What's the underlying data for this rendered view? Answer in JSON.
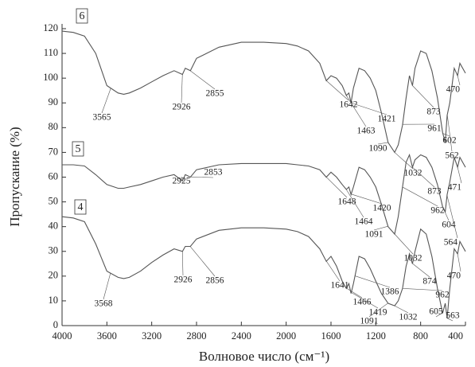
{
  "chart_data": {
    "type": "line",
    "xlabel": "Волновое число (см⁻¹)",
    "ylabel": "Пропускание (%)",
    "xlim": [
      4000,
      400
    ],
    "ylim": [
      0,
      120
    ],
    "xticks": [
      4000,
      3600,
      3200,
      2800,
      2400,
      2000,
      1600,
      1200,
      800,
      400
    ],
    "yticks": [
      0,
      10,
      20,
      30,
      40,
      50,
      60,
      70,
      80,
      90,
      100,
      110,
      120
    ],
    "x": [
      4000,
      3900,
      3800,
      3700,
      3600,
      3500,
      3450,
      3400,
      3300,
      3200,
      3100,
      3000,
      2926,
      2900,
      2855,
      2800,
      2600,
      2400,
      2200,
      2000,
      1900,
      1800,
      1700,
      1642,
      1600,
      1550,
      1500,
      1463,
      1440,
      1421,
      1400,
      1350,
      1300,
      1250,
      1200,
      1150,
      1090,
      1032,
      1000,
      962,
      930,
      900,
      873,
      850,
      800,
      750,
      700,
      650,
      604,
      580,
      563,
      540,
      500,
      470,
      450,
      400
    ],
    "series": [
      {
        "name": "6",
        "color": "#555555",
        "values": [
          119,
          118.5,
          117,
          110,
          97,
          94,
          93.5,
          94,
          96,
          98.5,
          101,
          103,
          101.5,
          104,
          103,
          108,
          112.5,
          114.5,
          114.5,
          114,
          113,
          111,
          106,
          99,
          101,
          100,
          97,
          93,
          94,
          90,
          96,
          104,
          103,
          100,
          95,
          86,
          74,
          70,
          73,
          81,
          92,
          101,
          97,
          104,
          111,
          110,
          103,
          92,
          78,
          74,
          85,
          90,
          104,
          101,
          106,
          102
        ],
        "peaks": [
          3565,
          2926,
          2855,
          1642,
          1463,
          1421,
          1090,
          1032,
          961,
          873,
          602,
          562,
          470
        ]
      },
      {
        "name": "5",
        "color": "#555555",
        "values": [
          65,
          65,
          64.5,
          61,
          57,
          55.5,
          55.5,
          56,
          57,
          58.5,
          60,
          61,
          58.5,
          61,
          60,
          63,
          65,
          65.5,
          65.5,
          65.5,
          65,
          64.5,
          63,
          60,
          62,
          60,
          57,
          55,
          56,
          53,
          56,
          64,
          63,
          60,
          56,
          49,
          40,
          37,
          44,
          56,
          66,
          69,
          64,
          67,
          69,
          68,
          64,
          57,
          48,
          46,
          53,
          58,
          68,
          64,
          68,
          64
        ],
        "peaks": [
          2925,
          2853,
          1648,
          1464,
          1420,
          1091,
          1032,
          962,
          873,
          604,
          564,
          471
        ]
      },
      {
        "name": "4",
        "color": "#555555",
        "values": [
          44,
          43.5,
          42,
          33,
          22,
          19.5,
          19,
          19.5,
          22,
          25.5,
          28.5,
          31,
          30,
          32,
          32,
          35,
          38.5,
          39.5,
          39.5,
          39,
          38,
          36,
          31,
          26,
          28,
          24,
          18,
          15,
          17,
          13,
          17,
          28,
          27,
          23,
          18,
          13,
          9,
          8,
          10,
          15,
          24,
          29,
          25,
          30,
          39,
          37,
          28,
          15,
          5,
          9,
          3,
          15,
          31,
          29,
          34,
          30
        ],
        "peaks": [
          3568,
          2926,
          2856,
          1641,
          1466,
          1419,
          1386,
          1091,
          1032,
          962,
          874,
          605,
          563,
          470
        ]
      }
    ]
  }
}
